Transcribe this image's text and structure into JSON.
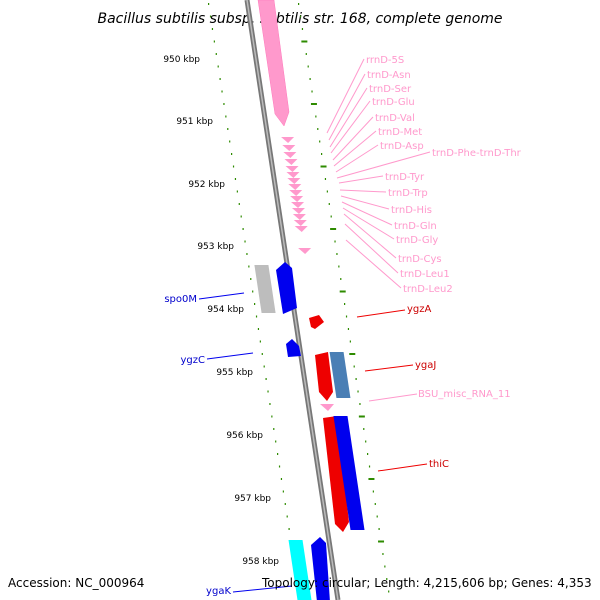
{
  "title": "Bacillus subtilis subsp. subtilis str. 168, complete genome",
  "footer": {
    "accession": "Accession: NC_000964",
    "topology": "Topology: circular; Length: 4,215,606 bp; Genes: 4,353"
  },
  "colors": {
    "backbone": "#888888",
    "tick": "#2e8b00",
    "rna": "#ff99cc",
    "forward": "#0000ff",
    "reverse": "#ff0000",
    "gray": "#bbbbbb",
    "steel": "#4a7fb5",
    "cyan": "#00ffff"
  },
  "axis_labels": [
    "950 kbp",
    "951 kbp",
    "952 kbp",
    "953 kbp",
    "954 kbp",
    "955 kbp",
    "956 kbp",
    "957 kbp",
    "958 kbp"
  ],
  "rna_labels": [
    "rrnD-5S",
    "trnD-Asn",
    "trnD-Ser",
    "trnD-Glu",
    "trnD-Val",
    "trnD-Met",
    "trnD-Asp",
    "trnD-Phe-trnD-Thr",
    "trnD-Tyr",
    "trnD-Trp",
    "trnD-His",
    "trnD-Gln",
    "trnD-Gly",
    "trnD-Cys",
    "trnD-Leu1",
    "trnD-Leu2",
    "BSU_misc_RNA_11"
  ],
  "gene_labels_right": [
    "ygzA",
    "ygaJ",
    "thiC"
  ],
  "gene_labels_left": [
    "spo0M",
    "ygzC",
    "ygaK"
  ]
}
